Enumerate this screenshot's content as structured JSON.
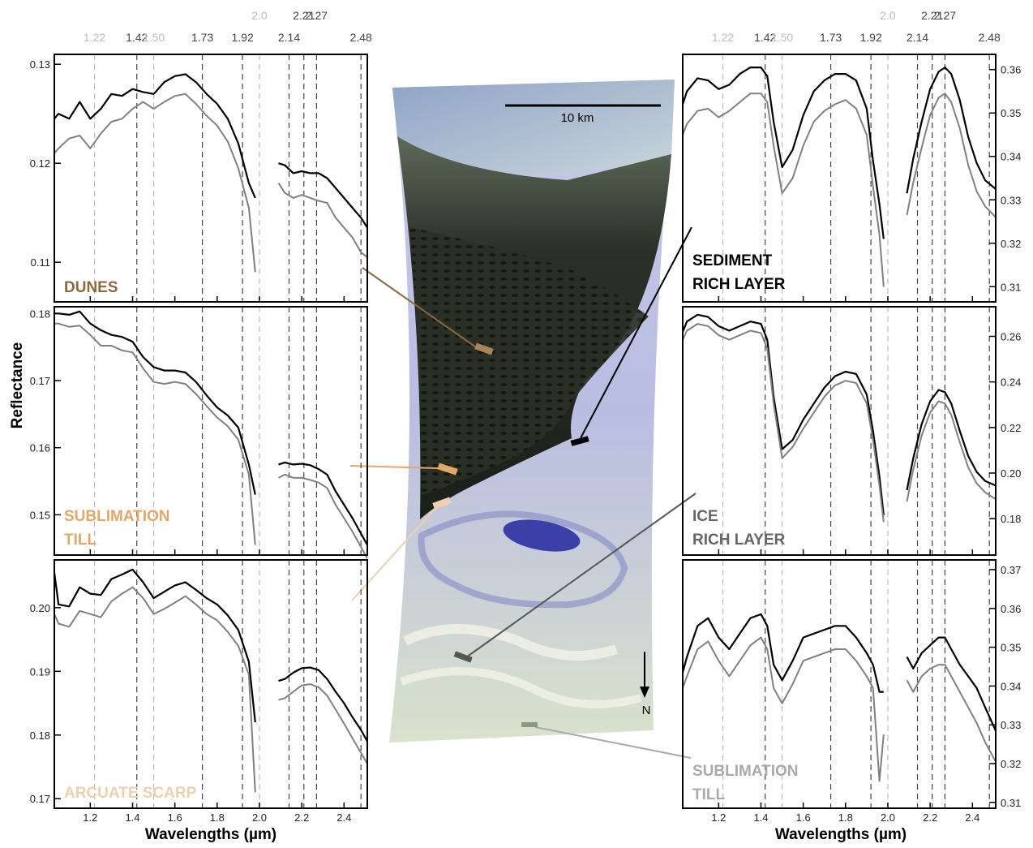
{
  "colors": {
    "spectrum_dark": "#000000",
    "spectrum_light": "#808080",
    "dunes": "#8a6a3e",
    "sublimation_till": "#e2a86a",
    "arcuate_scarp": "#f0cfb0",
    "sediment_rich_layer": "#000000",
    "ice_rich_layer": "#666666",
    "sublimation_till_right": "#aaaaaa"
  },
  "vlines": [
    {
      "wl": 1.22,
      "label": "1.22",
      "color": "#bbbbbb"
    },
    {
      "wl": 1.42,
      "label": "1.42",
      "color": "#444444"
    },
    {
      "wl": 1.5,
      "label": "1.50",
      "color": "#bbbbbb"
    },
    {
      "wl": 1.73,
      "label": "1.73",
      "color": "#444444"
    },
    {
      "wl": 1.92,
      "label": "1.92",
      "color": "#444444"
    },
    {
      "wl": 2.0,
      "label": "2.0",
      "color": "#bbbbbb"
    },
    {
      "wl": 2.14,
      "label": "2.14",
      "color": "#444444"
    },
    {
      "wl": 2.21,
      "label": "2.21",
      "color": "#444444"
    },
    {
      "wl": 2.27,
      "label": "2.27",
      "color": "#444444"
    },
    {
      "wl": 2.48,
      "label": "2.48",
      "color": "#444444"
    }
  ],
  "axes": {
    "ylabel": "Reflectance",
    "xlabel": "Wavelengths (µm)",
    "xticks": [
      "1.2",
      "1.4",
      "1.6",
      "1.8",
      "2.0",
      "2.2",
      "2.4"
    ]
  },
  "map": {
    "scale_label": "10 km",
    "north_label": "N"
  },
  "chart_data": [
    {
      "type": "line",
      "title": "DUNES",
      "ylim": [
        0.106,
        0.131
      ],
      "yticks": [
        "0.11",
        "0.12",
        "0.13"
      ],
      "x": [
        1.03,
        1.05,
        1.1,
        1.15,
        1.2,
        1.25,
        1.3,
        1.35,
        1.4,
        1.45,
        1.5,
        1.55,
        1.6,
        1.65,
        1.7,
        1.75,
        1.8,
        1.85,
        1.9,
        1.95,
        1.98,
        2.09,
        2.12,
        2.16,
        2.2,
        2.24,
        2.28,
        2.32,
        2.36,
        2.4,
        2.44,
        2.48,
        2.51
      ],
      "series": [
        {
          "values": [
            0.1245,
            0.125,
            0.1245,
            0.1262,
            0.1245,
            0.1255,
            0.127,
            0.1268,
            0.1275,
            0.1272,
            0.127,
            0.1282,
            0.1288,
            0.129,
            0.1282,
            0.127,
            0.126,
            0.1245,
            0.122,
            0.118,
            0.1165,
            0.12,
            0.1198,
            0.119,
            0.1192,
            0.119,
            0.119,
            0.1185,
            0.1175,
            0.1165,
            0.1155,
            0.1145,
            0.1135
          ]
        },
        {
          "values": [
            0.121,
            0.1215,
            0.1225,
            0.1228,
            0.1215,
            0.123,
            0.1242,
            0.1245,
            0.1255,
            0.1262,
            0.1255,
            0.1262,
            0.1268,
            0.127,
            0.126,
            0.1248,
            0.1238,
            0.1222,
            0.1195,
            0.1155,
            0.109,
            0.118,
            0.117,
            0.1165,
            0.1168,
            0.1165,
            0.1162,
            0.116,
            0.1145,
            0.1135,
            0.1125,
            0.111,
            0.1105
          ]
        }
      ]
    },
    {
      "type": "line",
      "title": "SUBLIMATION TILL",
      "ylim": [
        0.144,
        0.181
      ],
      "yticks": [
        "0.15",
        "0.16",
        "0.17",
        "0.18"
      ],
      "x": [
        1.03,
        1.05,
        1.1,
        1.15,
        1.2,
        1.25,
        1.3,
        1.35,
        1.4,
        1.45,
        1.5,
        1.55,
        1.6,
        1.65,
        1.7,
        1.75,
        1.8,
        1.85,
        1.9,
        1.95,
        1.98,
        2.09,
        2.12,
        2.16,
        2.2,
        2.24,
        2.28,
        2.32,
        2.36,
        2.4,
        2.44,
        2.48,
        2.51
      ],
      "series": [
        {
          "values": [
            0.18,
            0.18,
            0.1798,
            0.1803,
            0.1785,
            0.1775,
            0.1768,
            0.1765,
            0.1758,
            0.1735,
            0.172,
            0.1715,
            0.1715,
            0.1712,
            0.1698,
            0.1678,
            0.166,
            0.1648,
            0.163,
            0.1575,
            0.153,
            0.1575,
            0.1578,
            0.1575,
            0.1576,
            0.1574,
            0.1568,
            0.156,
            0.1535,
            0.1515,
            0.1495,
            0.1472,
            0.1455
          ]
        },
        {
          "values": [
            0.1785,
            0.1785,
            0.178,
            0.1782,
            0.1768,
            0.1752,
            0.1752,
            0.1745,
            0.1742,
            0.1718,
            0.1698,
            0.1695,
            0.1698,
            0.1695,
            0.168,
            0.1662,
            0.1645,
            0.1632,
            0.1612,
            0.156,
            0.1455,
            0.1555,
            0.156,
            0.1555,
            0.1555,
            0.1552,
            0.1548,
            0.154,
            0.1515,
            0.1495,
            0.1475,
            0.1452,
            0.1435
          ]
        }
      ]
    },
    {
      "type": "line",
      "title": "ARCUATE SCARP",
      "ylim": [
        0.1685,
        0.2075
      ],
      "yticks": [
        "0.17",
        "0.18",
        "0.19",
        "0.20"
      ],
      "x": [
        1.03,
        1.05,
        1.1,
        1.15,
        1.2,
        1.25,
        1.3,
        1.35,
        1.4,
        1.45,
        1.5,
        1.55,
        1.6,
        1.65,
        1.7,
        1.75,
        1.8,
        1.85,
        1.9,
        1.95,
        1.98,
        2.09,
        2.12,
        2.16,
        2.2,
        2.24,
        2.28,
        2.32,
        2.36,
        2.4,
        2.44,
        2.48,
        2.51
      ],
      "series": [
        {
          "values": [
            0.2055,
            0.2005,
            0.2002,
            0.2032,
            0.2022,
            0.202,
            0.2045,
            0.2052,
            0.206,
            0.204,
            0.2015,
            0.2025,
            0.2035,
            0.204,
            0.2028,
            0.2015,
            0.2005,
            0.1988,
            0.1965,
            0.1915,
            0.182,
            0.1885,
            0.1888,
            0.1898,
            0.1905,
            0.1906,
            0.1902,
            0.1888,
            0.1868,
            0.185,
            0.1828,
            0.1808,
            0.179
          ]
        },
        {
          "values": [
            0.199,
            0.1975,
            0.197,
            0.1995,
            0.199,
            0.1985,
            0.201,
            0.2022,
            0.2032,
            0.2015,
            0.199,
            0.1998,
            0.2008,
            0.2018,
            0.2005,
            0.199,
            0.198,
            0.1962,
            0.194,
            0.1895,
            0.171,
            0.1855,
            0.1858,
            0.1868,
            0.1878,
            0.188,
            0.1875,
            0.1862,
            0.184,
            0.1818,
            0.1795,
            0.1772,
            0.1755
          ]
        }
      ]
    },
    {
      "type": "line",
      "title": "SEDIMENT RICH LAYER",
      "ylim": [
        0.3065,
        0.3635
      ],
      "yticks": [
        "0.31",
        "0.32",
        "0.33",
        "0.34",
        "0.35",
        "0.36"
      ],
      "x": [
        1.03,
        1.05,
        1.1,
        1.15,
        1.2,
        1.25,
        1.3,
        1.35,
        1.4,
        1.43,
        1.46,
        1.5,
        1.55,
        1.6,
        1.65,
        1.7,
        1.75,
        1.8,
        1.85,
        1.9,
        1.93,
        1.96,
        1.98,
        2.09,
        2.12,
        2.16,
        2.2,
        2.24,
        2.27,
        2.3,
        2.34,
        2.38,
        2.42,
        2.46,
        2.51
      ],
      "series": [
        {
          "values": [
            0.352,
            0.355,
            0.358,
            0.3575,
            0.3555,
            0.3565,
            0.359,
            0.3605,
            0.3605,
            0.3585,
            0.348,
            0.3375,
            0.3415,
            0.3495,
            0.355,
            0.3575,
            0.359,
            0.359,
            0.3575,
            0.351,
            0.339,
            0.329,
            0.321,
            0.3315,
            0.3395,
            0.348,
            0.3555,
            0.3595,
            0.3605,
            0.359,
            0.353,
            0.3445,
            0.3385,
            0.3345,
            0.3325
          ]
        },
        {
          "values": [
            0.345,
            0.3475,
            0.3505,
            0.351,
            0.349,
            0.3505,
            0.3525,
            0.3545,
            0.3545,
            0.3525,
            0.3425,
            0.3315,
            0.335,
            0.3425,
            0.348,
            0.3505,
            0.352,
            0.353,
            0.351,
            0.345,
            0.333,
            0.322,
            0.31,
            0.3265,
            0.334,
            0.342,
            0.3495,
            0.3535,
            0.3545,
            0.3525,
            0.3465,
            0.338,
            0.332,
            0.3285,
            0.326
          ]
        }
      ]
    },
    {
      "type": "line",
      "title": "ICE RICH LAYER",
      "ylim": [
        0.164,
        0.273
      ],
      "yticks": [
        "0.18",
        "0.20",
        "0.22",
        "0.24",
        "0.26"
      ],
      "x": [
        1.03,
        1.05,
        1.1,
        1.15,
        1.2,
        1.25,
        1.3,
        1.35,
        1.4,
        1.43,
        1.46,
        1.5,
        1.55,
        1.6,
        1.65,
        1.7,
        1.75,
        1.8,
        1.85,
        1.9,
        1.93,
        1.96,
        1.98,
        2.09,
        2.12,
        2.16,
        2.2,
        2.24,
        2.27,
        2.3,
        2.34,
        2.38,
        2.42,
        2.46,
        2.51
      ],
      "series": [
        {
          "values": [
            0.262,
            0.2665,
            0.2695,
            0.2685,
            0.2645,
            0.2625,
            0.2645,
            0.2665,
            0.2655,
            0.2585,
            0.2335,
            0.2105,
            0.2145,
            0.2235,
            0.2305,
            0.2375,
            0.2425,
            0.2445,
            0.2435,
            0.2345,
            0.2185,
            0.1985,
            0.1815,
            0.1925,
            0.2065,
            0.2215,
            0.2315,
            0.2365,
            0.2355,
            0.2305,
            0.2185,
            0.2075,
            0.2005,
            0.1965,
            0.1945
          ]
        },
        {
          "values": [
            0.2585,
            0.2625,
            0.2655,
            0.2645,
            0.2605,
            0.2585,
            0.2605,
            0.2625,
            0.2615,
            0.2545,
            0.2305,
            0.2065,
            0.2115,
            0.2195,
            0.2265,
            0.2335,
            0.2385,
            0.2405,
            0.2395,
            0.2305,
            0.2145,
            0.1945,
            0.1785,
            0.1875,
            0.2015,
            0.2165,
            0.2265,
            0.2315,
            0.2305,
            0.2255,
            0.2135,
            0.2025,
            0.1955,
            0.1915,
            0.1885
          ]
        }
      ]
    },
    {
      "type": "line",
      "title": "SUBLIMATION TILL",
      "ylim": [
        0.3085,
        0.3725
      ],
      "yticks": [
        "0.31",
        "0.32",
        "0.33",
        "0.34",
        "0.35",
        "0.36",
        "0.37"
      ],
      "x": [
        1.03,
        1.05,
        1.1,
        1.15,
        1.2,
        1.25,
        1.3,
        1.35,
        1.4,
        1.43,
        1.46,
        1.5,
        1.55,
        1.6,
        1.65,
        1.7,
        1.75,
        1.8,
        1.85,
        1.9,
        1.93,
        1.96,
        1.98,
        2.09,
        2.12,
        2.16,
        2.2,
        2.24,
        2.27,
        2.3,
        2.34,
        2.38,
        2.42,
        2.46,
        2.51
      ],
      "series": [
        {
          "values": [
            0.3435,
            0.3475,
            0.3555,
            0.3575,
            0.3525,
            0.3495,
            0.3535,
            0.3575,
            0.3585,
            0.3555,
            0.3455,
            0.3415,
            0.3465,
            0.3525,
            0.3535,
            0.3545,
            0.3555,
            0.3555,
            0.3525,
            0.3485,
            0.3455,
            0.3385,
            0.3385,
            0.3475,
            0.3445,
            0.3485,
            0.3505,
            0.3525,
            0.3525,
            0.3495,
            0.3455,
            0.3425,
            0.3395,
            0.3345,
            0.3285
          ]
        },
        {
          "values": [
            0.3395,
            0.3425,
            0.3495,
            0.3515,
            0.3465,
            0.3425,
            0.3465,
            0.3505,
            0.3525,
            0.3495,
            0.3395,
            0.3355,
            0.3405,
            0.3465,
            0.3475,
            0.3485,
            0.3495,
            0.3495,
            0.3465,
            0.3425,
            0.3395,
            0.3155,
            0.3275,
            0.3415,
            0.3385,
            0.3425,
            0.3445,
            0.3455,
            0.3455,
            0.3425,
            0.3385,
            0.3345,
            0.3305,
            0.3255,
            0.3205
          ]
        }
      ]
    }
  ]
}
